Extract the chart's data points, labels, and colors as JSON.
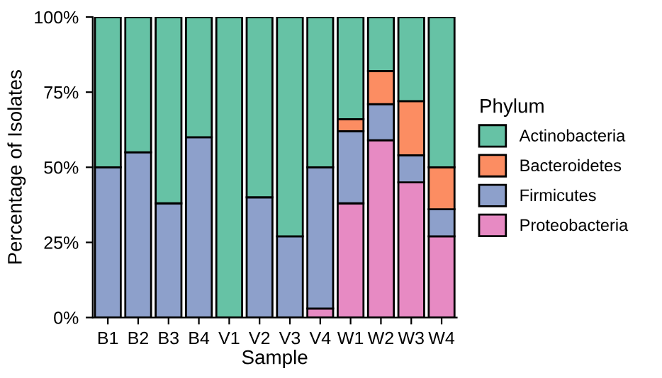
{
  "chart_data": {
    "type": "bar",
    "stacked": true,
    "xlabel": "Sample",
    "ylabel": "Percentage of Isolates",
    "legend_title": "Phylum",
    "legend": "right",
    "categories": [
      "B1",
      "B2",
      "B3",
      "B4",
      "V1",
      "V2",
      "V3",
      "V4",
      "W1",
      "W2",
      "W3",
      "W4"
    ],
    "series": [
      {
        "name": "Proteobacteria",
        "color": "#e78ac3",
        "values": [
          0,
          0,
          0,
          0,
          0,
          0,
          0,
          3,
          38,
          59,
          45,
          27
        ]
      },
      {
        "name": "Firmicutes",
        "color": "#8da0cb",
        "values": [
          50,
          55,
          38,
          60,
          0,
          40,
          27,
          47,
          24,
          12,
          9,
          9
        ]
      },
      {
        "name": "Bacteroidetes",
        "color": "#fc8d62",
        "values": [
          0,
          0,
          0,
          0,
          0,
          0,
          0,
          0,
          4,
          11,
          18,
          14
        ]
      },
      {
        "name": "Actinobacteria",
        "color": "#66c2a5",
        "values": [
          50,
          45,
          62,
          40,
          100,
          60,
          73,
          50,
          34,
          18,
          28,
          50
        ]
      }
    ],
    "ylim": [
      0,
      100
    ],
    "yticks": [
      {
        "value": 0,
        "label": "0%"
      },
      {
        "value": 25,
        "label": "25%"
      },
      {
        "value": 50,
        "label": "50%"
      },
      {
        "value": 75,
        "label": "75%"
      },
      {
        "value": 100,
        "label": "100%"
      }
    ],
    "grid": false
  }
}
